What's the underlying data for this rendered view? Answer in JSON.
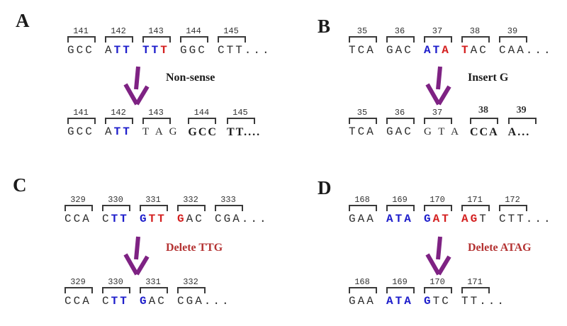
{
  "colors": {
    "sequence_blue": "#1e1ecb",
    "sequence_red": "#d42020",
    "arrow_purple": "#7e2283",
    "label_black": "#1c1c1c",
    "label_red": "#b43333",
    "text_black": "#2d2d2d"
  },
  "panels": [
    {
      "label": "A",
      "mutation": "Non-sense",
      "mutation_color": "#1c1c1c",
      "top": [
        {
          "num": "141",
          "segments": [
            {
              "t": "GCC",
              "s": "plain"
            }
          ]
        },
        {
          "num": "142",
          "segments": [
            {
              "t": "A",
              "s": "plain"
            },
            {
              "t": "TT",
              "s": "blue"
            }
          ]
        },
        {
          "num": "143",
          "segments": [
            {
              "t": "TT",
              "s": "blue"
            },
            {
              "t": "T",
              "s": "red"
            }
          ]
        },
        {
          "num": "144",
          "segments": [
            {
              "t": "GGC",
              "s": "plain"
            }
          ]
        },
        {
          "num": "145",
          "segments": [
            {
              "t": "CTT...",
              "s": "plain"
            }
          ]
        }
      ],
      "bottom": [
        {
          "num": "141",
          "segments": [
            {
              "t": "GCC",
              "s": "plain"
            }
          ]
        },
        {
          "num": "142",
          "segments": [
            {
              "t": "A",
              "s": "plain"
            },
            {
              "t": "TT",
              "s": "blue"
            }
          ]
        },
        {
          "num": "143",
          "segments": [
            {
              "t": "T A G",
              "s": "serif"
            }
          ]
        },
        {
          "num": "144",
          "segments": [
            {
              "t": "GCC",
              "s": "serif-bold"
            }
          ]
        },
        {
          "num": "145",
          "segments": [
            {
              "t": "TT....",
              "s": "serif-bold"
            }
          ]
        }
      ]
    },
    {
      "label": "B",
      "mutation": "Insert G",
      "mutation_color": "#1c1c1c",
      "top": [
        {
          "num": "35",
          "segments": [
            {
              "t": "TCA",
              "s": "plain"
            }
          ]
        },
        {
          "num": "36",
          "segments": [
            {
              "t": "GAC",
              "s": "plain"
            }
          ]
        },
        {
          "num": "37",
          "segments": [
            {
              "t": "AT",
              "s": "blue"
            },
            {
              "t": "A",
              "s": "red"
            }
          ]
        },
        {
          "num": "38",
          "segments": [
            {
              "t": "T",
              "s": "red"
            },
            {
              "t": "AC",
              "s": "plain"
            }
          ]
        },
        {
          "num": "39",
          "segments": [
            {
              "t": "CAA...",
              "s": "plain"
            }
          ]
        }
      ],
      "bottom": [
        {
          "num": "35",
          "segments": [
            {
              "t": "TCA",
              "s": "plain"
            }
          ]
        },
        {
          "num": "36",
          "segments": [
            {
              "t": "GAC",
              "s": "plain"
            }
          ]
        },
        {
          "num": "37",
          "segments": [
            {
              "t": "G T A",
              "s": "serif"
            }
          ]
        },
        {
          "num": "38",
          "num_style": "bold",
          "segments": [
            {
              "t": "CCA",
              "s": "serif-bold"
            }
          ]
        },
        {
          "num": "39",
          "num_style": "bold",
          "segments": [
            {
              "t": "A...",
              "s": "serif-bold"
            }
          ]
        }
      ]
    },
    {
      "label": "C",
      "mutation": "Delete TTG",
      "mutation_color": "#b43333",
      "top": [
        {
          "num": "329",
          "segments": [
            {
              "t": "CCA",
              "s": "plain"
            }
          ]
        },
        {
          "num": "330",
          "segments": [
            {
              "t": "C",
              "s": "plain"
            },
            {
              "t": "TT",
              "s": "blue"
            }
          ]
        },
        {
          "num": "331",
          "segments": [
            {
              "t": "G",
              "s": "blue"
            },
            {
              "t": "TT",
              "s": "red"
            }
          ]
        },
        {
          "num": "332",
          "segments": [
            {
              "t": "G",
              "s": "red"
            },
            {
              "t": "AC",
              "s": "plain"
            }
          ]
        },
        {
          "num": "333",
          "segments": [
            {
              "t": "CGA...",
              "s": "plain"
            }
          ]
        }
      ],
      "bottom": [
        {
          "num": "329",
          "segments": [
            {
              "t": "CCA",
              "s": "plain"
            }
          ]
        },
        {
          "num": "330",
          "segments": [
            {
              "t": "C",
              "s": "plain"
            },
            {
              "t": "TT",
              "s": "blue"
            }
          ]
        },
        {
          "num": "331",
          "segments": [
            {
              "t": "G",
              "s": "blue"
            },
            {
              "t": "AC",
              "s": "plain"
            }
          ]
        },
        {
          "num": "332",
          "segments": [
            {
              "t": "CGA...",
              "s": "plain"
            }
          ]
        }
      ]
    },
    {
      "label": "D",
      "mutation": "Delete ATAG",
      "mutation_color": "#b43333",
      "top": [
        {
          "num": "168",
          "segments": [
            {
              "t": "GAA",
              "s": "plain"
            }
          ]
        },
        {
          "num": "169",
          "segments": [
            {
              "t": "ATA",
              "s": "blue"
            }
          ]
        },
        {
          "num": "170",
          "segments": [
            {
              "t": "G",
              "s": "blue"
            },
            {
              "t": "AT",
              "s": "red"
            }
          ]
        },
        {
          "num": "171",
          "segments": [
            {
              "t": "AG",
              "s": "red"
            },
            {
              "t": "T",
              "s": "plain"
            }
          ]
        },
        {
          "num": "172",
          "segments": [
            {
              "t": "CTT...",
              "s": "plain"
            }
          ]
        }
      ],
      "bottom": [
        {
          "num": "168",
          "segments": [
            {
              "t": "GAA",
              "s": "plain"
            }
          ]
        },
        {
          "num": "169",
          "segments": [
            {
              "t": "ATA",
              "s": "blue"
            }
          ]
        },
        {
          "num": "170",
          "segments": [
            {
              "t": "G",
              "s": "blue"
            },
            {
              "t": "TC",
              "s": "plain"
            }
          ]
        },
        {
          "num": "171",
          "segments": [
            {
              "t": "TT...",
              "s": "plain"
            }
          ]
        }
      ]
    }
  ]
}
